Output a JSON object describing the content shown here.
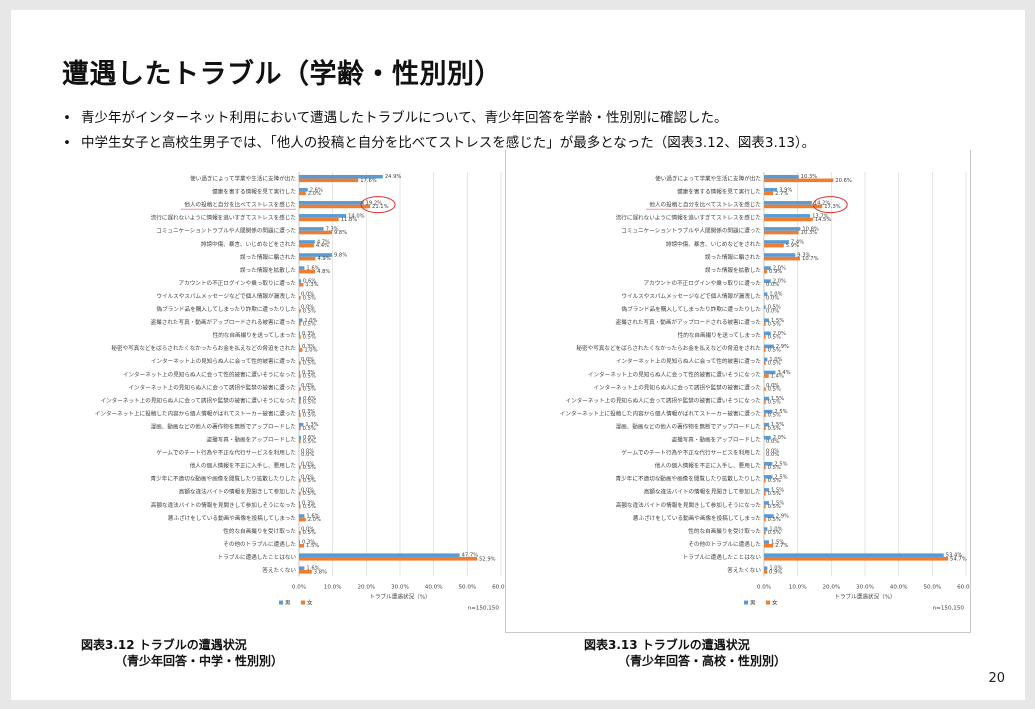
{
  "slide": {
    "title": "遭遇したトラブル（学齢・性別別）",
    "bullets": [
      "青少年がインターネット利用において遭遇したトラブルについて、青少年回答を学齢・性別別に確認した。",
      "中学生女子と高校生男子では、「他人の投稿と自分を比べてストレスを感じた」が最多となった（図表3.12、図表3.13）。"
    ],
    "bullet_marker": "•",
    "page_number": "20",
    "captions": [
      {
        "line1": "図表3.12 トラブルの遭遇状況",
        "line2": "（青少年回答・中学・性別別）"
      },
      {
        "line1": "図表3.13 トラブルの遭遇状況",
        "line2": "（青少年回答・高校・性別別）"
      }
    ]
  },
  "colors": {
    "male": "#5b9bd5",
    "female": "#ed7d31",
    "highlight": "#e03030",
    "grid": "#d9d9d9",
    "axis": "#bfbfbf",
    "text": "#404040"
  },
  "chart_data": [
    {
      "type": "bar",
      "orientation": "horizontal",
      "categories": [
        "使い過ぎによって学業や生活に支障が出た",
        "健康を害する情報を見て実行した",
        "他人の投稿と自分を比べてストレスを感じた",
        "流行に遅れないように情報を追いすぎてストレスを感じた",
        "コミュニケーショントラブルや人間関係の問題に遭った",
        "誹謗中傷、暴言、いじめなどをされた",
        "誤った情報に騙された",
        "誤った情報を拡散した",
        "アカウントの不正ログインや乗っ取りに遭った",
        "ウイルスやスパムメッセージなどで個人情報が漏洩した",
        "偽ブランド品を購入してしまったり詐欺に遭ったりした",
        "盗撮された写真・動画がアップロードされる被害に遭った",
        "性的な自画撮りを送ってしまった",
        "秘密や写真などをばらされたくなかったらお金を払えなどの脅迫をされた",
        "インターネット上の見知らぬ人に会って性的被害に遭った",
        "インターネット上の見知らぬ人に会って性的被害に遭いそうになった",
        "インターネット上の見知らぬ人に会って誘拐や監禁の被害に遭った",
        "インターネット上の見知らぬ人に会って誘拐や監禁の被害に遭いそうになった",
        "インターネット上に投稿した内容から個人情報がばれてストーカー被害に遭った",
        "漫画、動画などの他人の著作物を無断でアップロードした",
        "盗撮写真・動画をアップロードした",
        "ゲームでのチート行為や不正な代行サービスを利用した",
        "他人の個人情報を不正に入手し、悪用した",
        "青少年に不適切な動画や画像を閲覧したり拡散したりした",
        "高額な違法バイトの情報を見聞きして参加した",
        "高額な違法バイトの情報を見聞きして参加しそうになった",
        "悪ふざけをしている動画や画像を投稿してしまった",
        "性的な自画撮りを受け取った",
        "その他のトラブルに遭遇した",
        "トラブルに遭遇したことはない",
        "答えたくない"
      ],
      "series": [
        {
          "name": "男",
          "values": [
            24.9,
            2.6,
            19.2,
            14.0,
            7.3,
            4.7,
            9.8,
            1.6,
            0.6,
            0.0,
            0.0,
            1.0,
            0.3,
            0.3,
            0.0,
            0.3,
            0.0,
            0.6,
            0.3,
            1.3,
            0.6,
            0.0,
            0.0,
            0.0,
            0.0,
            0.3,
            1.6,
            0.0,
            0.3,
            47.7,
            1.6
          ]
        },
        {
          "name": "女",
          "values": [
            17.6,
            2.0,
            21.1,
            11.8,
            9.8,
            4.4,
            4.9,
            4.8,
            1.3,
            0.5,
            0.5,
            0.5,
            0.5,
            1.0,
            0.5,
            0.5,
            0.5,
            0.5,
            0.5,
            0.5,
            0.5,
            0.0,
            0.5,
            0.5,
            0.5,
            0.5,
            2.0,
            0.5,
            1.5,
            52.9,
            3.8
          ]
        }
      ],
      "value_labels": {
        "男": [
          "24.9%",
          "2.6%",
          "19.2%",
          "14.0%",
          "7.3%",
          "4.7%",
          "9.8%",
          "1.6%",
          "0.6%",
          "0.0%",
          "0.0%",
          "1.0%",
          "0.3%",
          "0.3%",
          "0.0%",
          "0.3%",
          "0.0%",
          "0.6%",
          "0.3%",
          "1.3%",
          "0.6%",
          "0.0%",
          "0.0%",
          "0.0%",
          "0.0%",
          "0.3%",
          "1.6%",
          "0.0%",
          "0.3%",
          "47.7%",
          "1.6%"
        ],
        "女": [
          "17.6%",
          "2.0%",
          "21.1%",
          "11.8%",
          "9.8%",
          "4.4%",
          "4.9%",
          "4.8%",
          "1.3%",
          "0.5%",
          "0.5%",
          "0.5%",
          "0.5%",
          "1.0%",
          "0.5%",
          "0.5%",
          "0.5%",
          "0.5%",
          "0.5%",
          "0.5%",
          "0.5%",
          "0.0%",
          "0.5%",
          "0.5%",
          "0.5%",
          "0.5%",
          "2.0%",
          "0.5%",
          "1.5%",
          "52.9%",
          "3.8%"
        ]
      },
      "xlabel": "トラブル遭遇状況（%）",
      "xlim": [
        0,
        60
      ],
      "xticks": [
        "0.0%",
        "10.0%",
        "20.0%",
        "30.0%",
        "40.0%",
        "50.0%",
        "60.0%"
      ],
      "note": "n=150,150",
      "grid": true,
      "legend": "bottom-left",
      "highlight_category": "他人の投稿と自分を比べてストレスを感じた"
    },
    {
      "type": "bar",
      "orientation": "horizontal",
      "categories": [
        "使い過ぎによって学業や生活に支障が出た",
        "健康を害する情報を見て実行した",
        "他人の投稿と自分を比べてストレスを感じた",
        "流行に遅れないように情報を追いすぎてストレスを感じた",
        "コミュニケーショントラブルや人間関係の問題に遭った",
        "誹謗中傷、暴言、いじめなどをされた",
        "誤った情報に騙された",
        "誤った情報を拡散した",
        "アカウントの不正ログインや乗っ取りに遭った",
        "ウイルスやスパムメッセージなどで個人情報が漏洩した",
        "偽ブランド品を購入してしまったり詐欺に遭ったりした",
        "盗撮された写真・動画がアップロードされる被害に遭った",
        "性的な自画撮りを送ってしまった",
        "秘密や写真などをばらされたくなかったらお金を払えなどの脅迫をされた",
        "インターネット上の見知らぬ人に会って性的被害に遭った",
        "インターネット上の見知らぬ人に会って性的被害に遭いそうになった",
        "インターネット上の見知らぬ人に会って誘拐や監禁の被害に遭った",
        "インターネット上の見知らぬ人に会って誘拐や監禁の被害に遭いそうになった",
        "インターネット上に投稿した内容から個人情報がばれてストーカー被害に遭った",
        "漫画、動画などの他人の著作物を無断でアップロードした",
        "盗撮写真・動画をアップロードした",
        "ゲームでのチート行為や不正な代行サービスを利用した",
        "他人の個人情報を不正に入手し、悪用した",
        "青少年に不適切な動画や画像を閲覧したり拡散したりした",
        "高額な違法バイトの情報を見聞きして参加した",
        "高額な違法バイトの情報を見聞きして参加しそうになった",
        "悪ふざけをしている動画や画像を投稿してしまった",
        "性的な自画撮りを受け取った",
        "その他のトラブルに遭遇した",
        "トラブルに遭遇したことはない",
        "答えたくない"
      ],
      "series": [
        {
          "name": "男",
          "values": [
            10.3,
            3.9,
            14.2,
            13.7,
            10.8,
            7.4,
            9.3,
            2.0,
            2.0,
            1.0,
            0.5,
            1.5,
            2.0,
            2.9,
            1.0,
            3.4,
            0.0,
            1.5,
            2.5,
            1.5,
            2.0,
            0.0,
            2.5,
            2.5,
            1.5,
            1.5,
            2.9,
            1.0,
            1.5,
            53.4,
            1.0
          ]
        },
        {
          "name": "女",
          "values": [
            20.6,
            2.7,
            17.3,
            14.5,
            10.3,
            5.9,
            10.7,
            0.9,
            0.0,
            0.0,
            0.0,
            0.5,
            0.5,
            0.5,
            0.5,
            1.4,
            0.5,
            0.5,
            0.5,
            0.5,
            0.0,
            0.0,
            0.5,
            0.5,
            0.5,
            0.5,
            0.5,
            0.5,
            2.7,
            54.7,
            0.9
          ]
        }
      ],
      "value_labels": {
        "男": [
          "10.3%",
          "3.9%",
          "14.2%",
          "13.7%",
          "10.8%",
          "7.4%",
          "9.3%",
          "2.0%",
          "2.0%",
          "1.0%",
          "0.5%",
          "1.5%",
          "2.0%",
          "2.9%",
          "1.0%",
          "3.4%",
          "0.0%",
          "1.5%",
          "2.5%",
          "1.5%",
          "2.0%",
          "0.0%",
          "2.5%",
          "2.5%",
          "1.5%",
          "1.5%",
          "2.9%",
          "1.0%",
          "1.5%",
          "53.4%",
          "1.0%"
        ],
        "女": [
          "20.6%",
          "2.7%",
          "17.3%",
          "14.5%",
          "10.3%",
          "5.9%",
          "10.7%",
          "0.9%",
          "0.0%",
          "0.0%",
          "0.0%",
          "0.5%",
          "0.5%",
          "0.5%",
          "0.5%",
          "1.4%",
          "0.5%",
          "0.5%",
          "0.5%",
          "0.5%",
          "0.0%",
          "0.0%",
          "0.5%",
          "0.5%",
          "0.5%",
          "0.5%",
          "0.5%",
          "0.5%",
          "2.7%",
          "54.7%",
          "0.9%"
        ]
      },
      "xlabel": "トラブル遭遇状況（%）",
      "xlim": [
        0,
        60
      ],
      "xticks": [
        "0.0%",
        "10.0%",
        "20.0%",
        "30.0%",
        "40.0%",
        "50.0%",
        "60.0%"
      ],
      "note": "n=150,150",
      "grid": true,
      "legend": "bottom-left",
      "highlight_category": "他人の投稿と自分を比べてストレスを感じた"
    }
  ]
}
